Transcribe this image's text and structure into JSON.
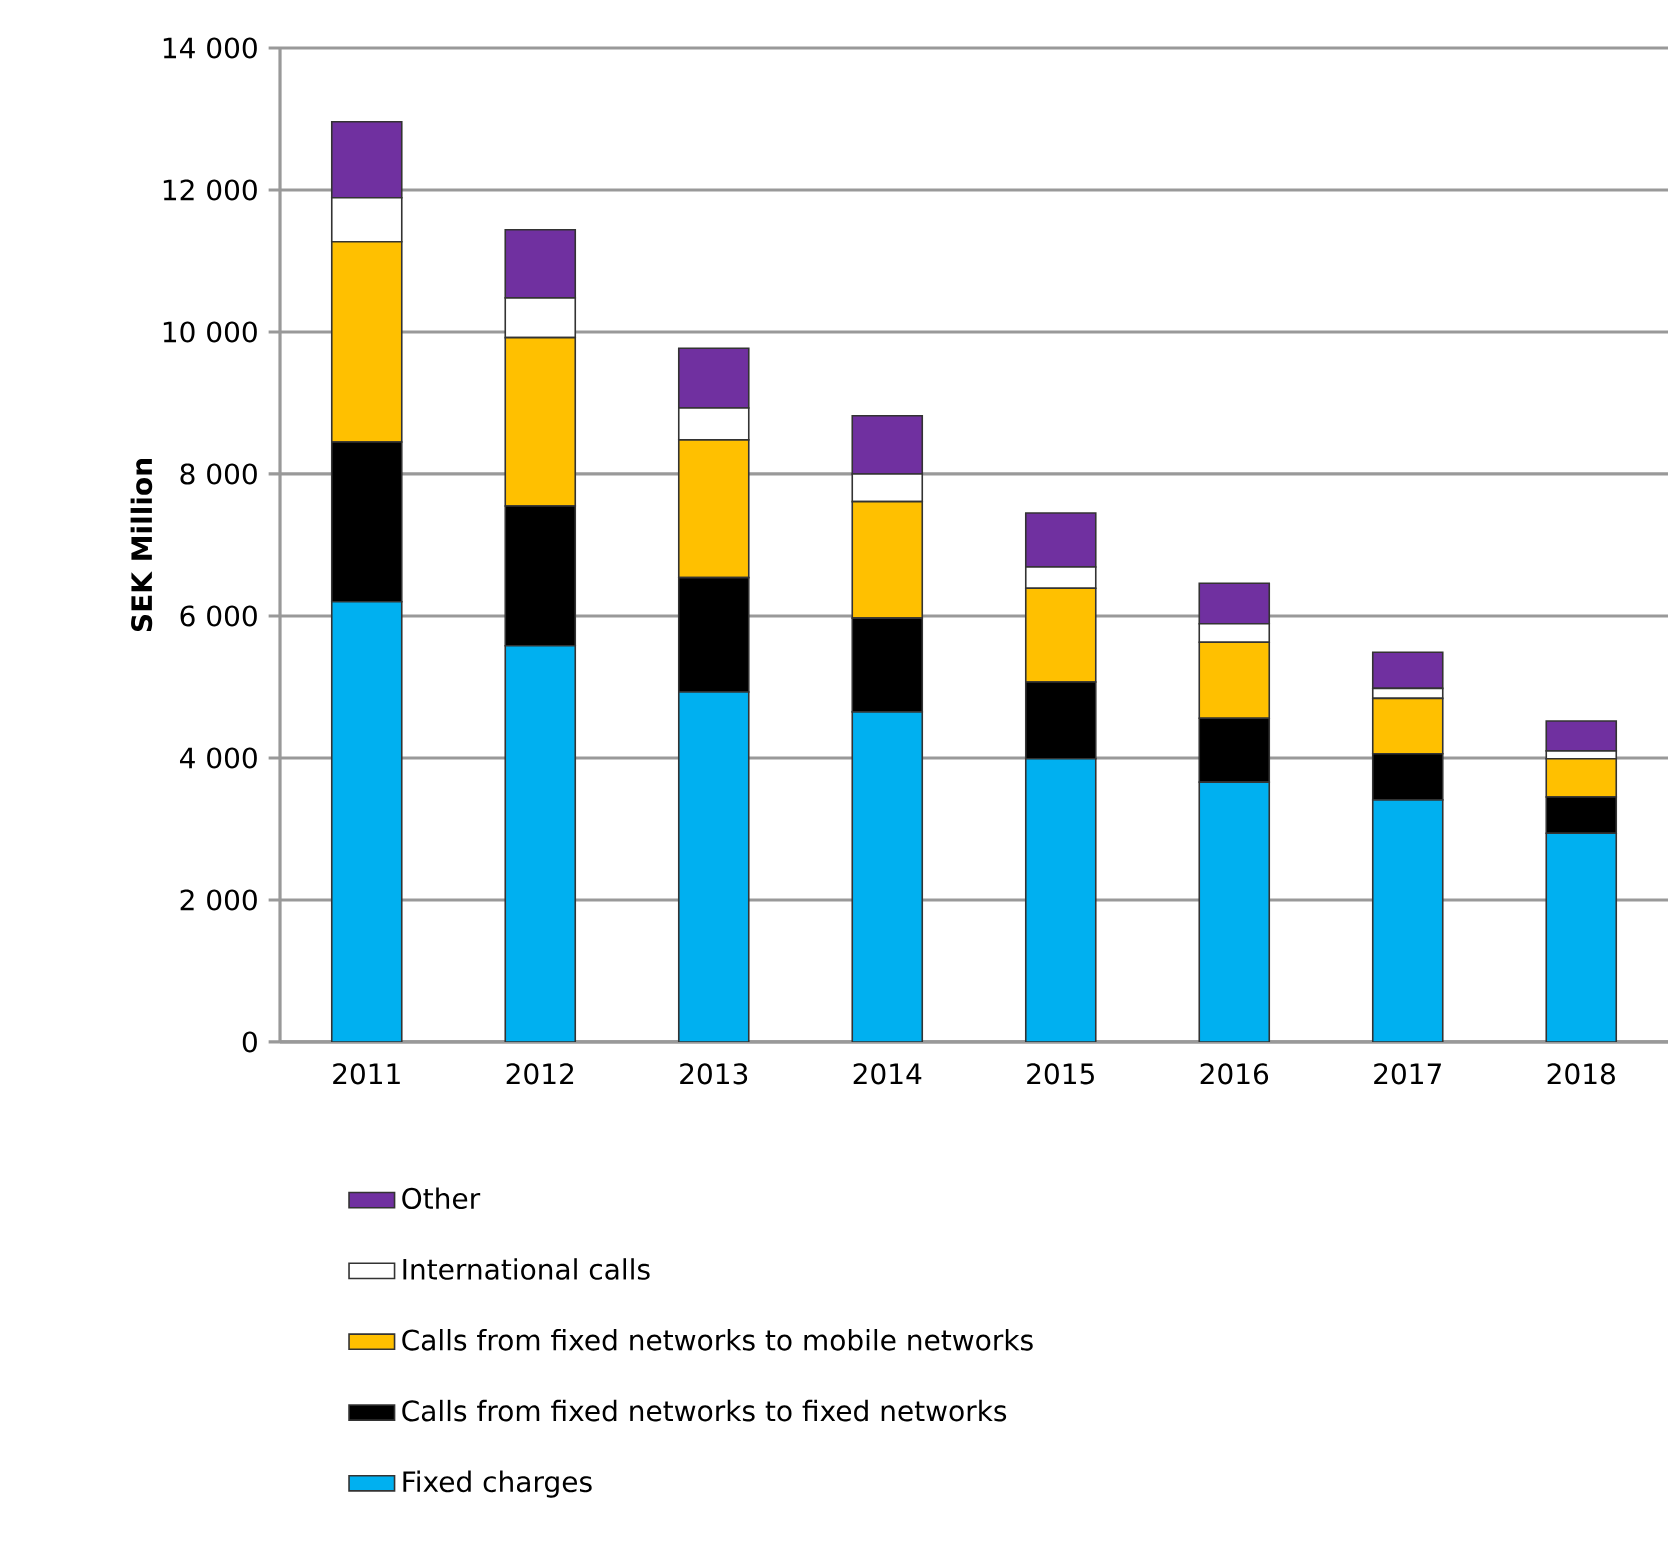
{
  "chart_data": {
    "type": "bar",
    "stacked": true,
    "ylabel": "SEK Million",
    "categories": [
      "2011",
      "2012",
      "2013",
      "2014",
      "2015",
      "2016",
      "2017",
      "2018"
    ],
    "series": [
      {
        "name": "Fixed charges",
        "color": "#00b0f0",
        "values": [
          6200,
          5580,
          4930,
          4650,
          3990,
          3660,
          3410,
          2940
        ]
      },
      {
        "name": "Calls from fixed networks to fixed networks",
        "color": "#000000",
        "values": [
          2250,
          1970,
          1610,
          1320,
          1080,
          900,
          650,
          510
        ]
      },
      {
        "name": "Calls from fixed networks to mobile networks",
        "color": "#ffc000",
        "values": [
          2820,
          2370,
          1940,
          1640,
          1320,
          1070,
          780,
          540
        ]
      },
      {
        "name": "International calls",
        "color": "#ffffff",
        "values": [
          620,
          560,
          450,
          390,
          300,
          260,
          140,
          110
        ]
      },
      {
        "name": "Other",
        "color": "#7030a0",
        "values": [
          1070,
          960,
          840,
          820,
          760,
          570,
          510,
          420
        ]
      }
    ],
    "ylim": [
      0,
      14000
    ],
    "yticks": [
      {
        "value": 0,
        "label": "0"
      },
      {
        "value": 2000,
        "label": "2 000"
      },
      {
        "value": 4000,
        "label": "4 000"
      },
      {
        "value": 6000,
        "label": "6 000"
      },
      {
        "value": 8000,
        "label": "8 000"
      },
      {
        "value": 10000,
        "label": "10 000"
      },
      {
        "value": 12000,
        "label": "12 000"
      },
      {
        "value": 14000,
        "label": "14 000"
      }
    ],
    "grid": "y",
    "legend": "bottom"
  }
}
